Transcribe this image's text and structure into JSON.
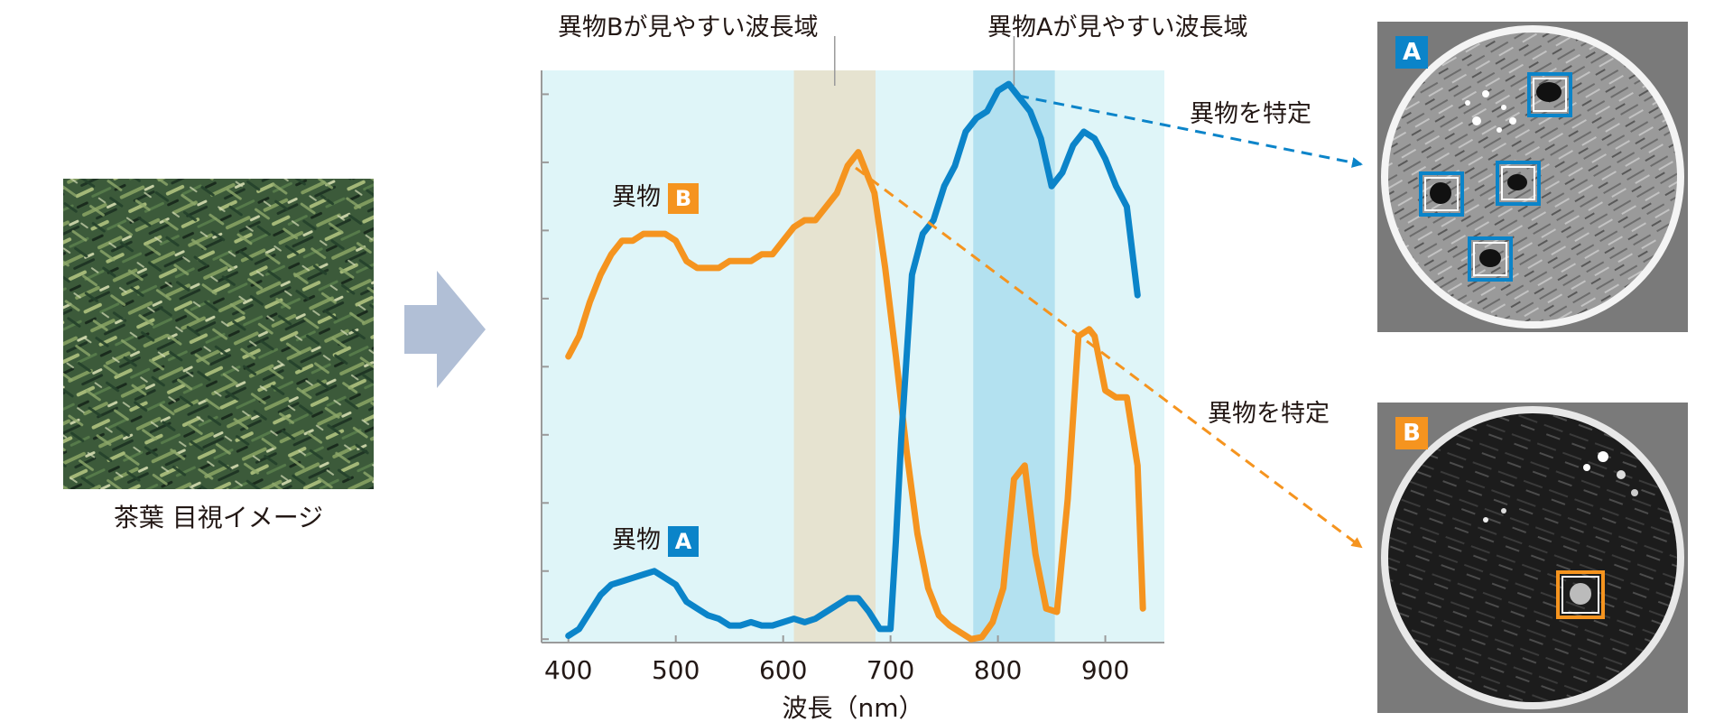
{
  "photo": {
    "caption": "茶葉 目視イメージ"
  },
  "colors": {
    "series_a": "#0b84c9",
    "series_b": "#f5941f",
    "plot_bg": "#dff5f8",
    "band_b": "#e6e3d0",
    "band_a": "#b3e1f0",
    "arrow": "#b1bfd6"
  },
  "annotations": {
    "band_b_label": "異物Bが見やすい波長域",
    "band_a_label": "異物Aが見やすい波長域",
    "identify_a": "異物を特定",
    "identify_b": "異物を特定"
  },
  "series_labels": {
    "b_text": "異物",
    "b_badge": "B",
    "a_text": "異物",
    "a_badge": "A"
  },
  "results": {
    "a_badge": "A",
    "b_badge": "B"
  },
  "chart_data": {
    "type": "line",
    "title": "",
    "xlabel": "波長（nm）",
    "ylabel": "",
    "xlim": [
      375,
      955
    ],
    "ylim": [
      0,
      8.4
    ],
    "xticks": [
      400,
      500,
      600,
      700,
      800,
      900
    ],
    "bands": [
      {
        "name": "異物Bが見やすい波長域",
        "from": 610,
        "to": 686
      },
      {
        "name": "異物Aが見やすい波長域",
        "from": 777,
        "to": 853
      }
    ],
    "series": [
      {
        "name": "異物 B",
        "color": "#f5941f",
        "points": [
          [
            400,
            4.2
          ],
          [
            410,
            4.5
          ],
          [
            420,
            5.0
          ],
          [
            430,
            5.4
          ],
          [
            440,
            5.7
          ],
          [
            450,
            5.9
          ],
          [
            460,
            5.9
          ],
          [
            470,
            6.0
          ],
          [
            480,
            6.0
          ],
          [
            490,
            6.0
          ],
          [
            500,
            5.9
          ],
          [
            510,
            5.6
          ],
          [
            520,
            5.5
          ],
          [
            530,
            5.5
          ],
          [
            540,
            5.5
          ],
          [
            550,
            5.6
          ],
          [
            560,
            5.6
          ],
          [
            570,
            5.6
          ],
          [
            580,
            5.7
          ],
          [
            590,
            5.7
          ],
          [
            600,
            5.9
          ],
          [
            610,
            6.1
          ],
          [
            620,
            6.2
          ],
          [
            630,
            6.2
          ],
          [
            640,
            6.4
          ],
          [
            650,
            6.6
          ],
          [
            660,
            7.0
          ],
          [
            670,
            7.2
          ],
          [
            675,
            7.0
          ],
          [
            685,
            6.6
          ],
          [
            695,
            5.5
          ],
          [
            705,
            4.2
          ],
          [
            715,
            2.8
          ],
          [
            725,
            1.6
          ],
          [
            735,
            0.8
          ],
          [
            745,
            0.4
          ],
          [
            755,
            0.25
          ],
          [
            765,
            0.15
          ],
          [
            775,
            0.05
          ],
          [
            785,
            0.08
          ],
          [
            795,
            0.3
          ],
          [
            805,
            0.8
          ],
          [
            815,
            2.4
          ],
          [
            825,
            2.6
          ],
          [
            835,
            1.3
          ],
          [
            845,
            0.5
          ],
          [
            855,
            0.45
          ],
          [
            865,
            2.1
          ],
          [
            875,
            4.5
          ],
          [
            885,
            4.6
          ],
          [
            890,
            4.5
          ],
          [
            900,
            3.7
          ],
          [
            910,
            3.6
          ],
          [
            920,
            3.6
          ],
          [
            930,
            2.6
          ],
          [
            935,
            0.5
          ]
        ]
      },
      {
        "name": "異物 A",
        "color": "#0b84c9",
        "points": [
          [
            400,
            0.1
          ],
          [
            410,
            0.2
          ],
          [
            420,
            0.45
          ],
          [
            430,
            0.7
          ],
          [
            440,
            0.85
          ],
          [
            450,
            0.9
          ],
          [
            460,
            0.95
          ],
          [
            470,
            1.0
          ],
          [
            480,
            1.05
          ],
          [
            490,
            0.95
          ],
          [
            500,
            0.85
          ],
          [
            510,
            0.6
          ],
          [
            520,
            0.5
          ],
          [
            530,
            0.4
          ],
          [
            540,
            0.35
          ],
          [
            550,
            0.25
          ],
          [
            560,
            0.25
          ],
          [
            570,
            0.3
          ],
          [
            580,
            0.25
          ],
          [
            590,
            0.25
          ],
          [
            600,
            0.3
          ],
          [
            610,
            0.35
          ],
          [
            620,
            0.3
          ],
          [
            630,
            0.35
          ],
          [
            640,
            0.45
          ],
          [
            650,
            0.55
          ],
          [
            660,
            0.65
          ],
          [
            670,
            0.65
          ],
          [
            680,
            0.45
          ],
          [
            690,
            0.2
          ],
          [
            700,
            0.2
          ],
          [
            705,
            1.5
          ],
          [
            710,
            3.0
          ],
          [
            720,
            5.4
          ],
          [
            730,
            6.0
          ],
          [
            740,
            6.2
          ],
          [
            750,
            6.7
          ],
          [
            760,
            7.0
          ],
          [
            770,
            7.5
          ],
          [
            780,
            7.7
          ],
          [
            790,
            7.8
          ],
          [
            800,
            8.1
          ],
          [
            810,
            8.2
          ],
          [
            820,
            8.0
          ],
          [
            830,
            7.8
          ],
          [
            840,
            7.4
          ],
          [
            850,
            6.7
          ],
          [
            860,
            6.9
          ],
          [
            870,
            7.3
          ],
          [
            880,
            7.5
          ],
          [
            890,
            7.4
          ],
          [
            900,
            7.1
          ],
          [
            910,
            6.7
          ],
          [
            920,
            6.4
          ],
          [
            930,
            5.1
          ]
        ]
      }
    ]
  }
}
